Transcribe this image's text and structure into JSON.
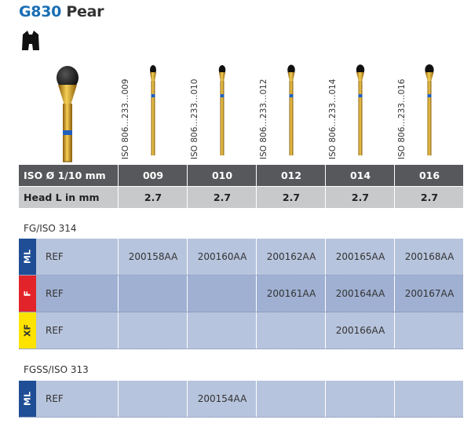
{
  "title": {
    "code": "G830",
    "name": "Pear"
  },
  "columns": [
    {
      "iso": "ISO 806…233…009",
      "diameter": "009",
      "head_length": "2.7"
    },
    {
      "iso": "ISO 806…233…010",
      "diameter": "010",
      "head_length": "2.7"
    },
    {
      "iso": "ISO 806…233…012",
      "diameter": "012",
      "head_length": "2.7"
    },
    {
      "iso": "ISO 806…233…014",
      "diameter": "014",
      "head_length": "2.7"
    },
    {
      "iso": "ISO 806…233…016",
      "diameter": "016",
      "head_length": "2.7"
    }
  ],
  "spec_labels": {
    "iso": "ISO Ø 1/10 mm",
    "head": "Head L in mm"
  },
  "sections": [
    {
      "label": "FG/ISO 314",
      "rows": [
        {
          "tag": "ML",
          "label": "REF",
          "cells": [
            "200158AA",
            "200160AA",
            "200162AA",
            "200165AA",
            "200168AA"
          ]
        },
        {
          "tag": "F",
          "label": "REF",
          "cells": [
            "",
            "",
            "200161AA",
            "200164AA",
            "200167AA"
          ]
        },
        {
          "tag": "XF",
          "label": "REF",
          "cells": [
            "",
            "",
            "",
            "200166AA",
            ""
          ]
        }
      ]
    },
    {
      "label": "FGSS/ISO 313",
      "rows": [
        {
          "tag": "ML",
          "label": "REF",
          "cells": [
            "",
            "200154AA",
            "",
            "",
            ""
          ]
        }
      ]
    }
  ],
  "colors": {
    "title_blue": "#1a6fb5",
    "ml": "#1f4e96",
    "f": "#e2242a",
    "xf": "#ffe300",
    "gold": "#d9a21b"
  },
  "icons": {
    "handpiece": "handpiece-icon",
    "bur": "bur-icon"
  }
}
